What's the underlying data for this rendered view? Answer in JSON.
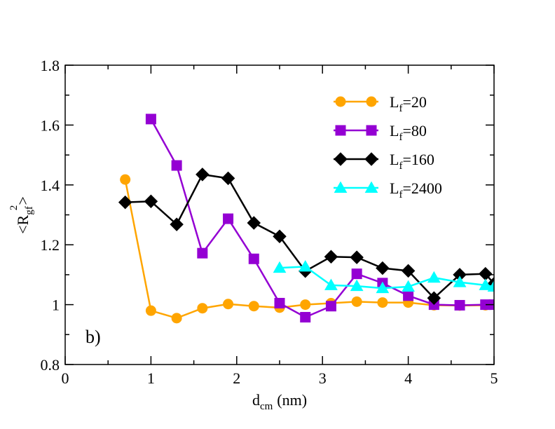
{
  "chart_data": {
    "type": "line",
    "title": "",
    "panel_label": "b)",
    "xlabel": {
      "main": "d",
      "sub": "cm",
      "unit": "(nm)"
    },
    "ylabel": {
      "open": "<R",
      "sub": "gf",
      "sup": "2",
      "close": ">"
    },
    "xlim": [
      0,
      5
    ],
    "ylim": [
      0.8,
      1.8
    ],
    "xticks": [
      0,
      1,
      2,
      3,
      4,
      5
    ],
    "xtick_labels": [
      "0",
      "1",
      "2",
      "3",
      "4",
      "5"
    ],
    "yticks": [
      0.8,
      1.0,
      1.2,
      1.4,
      1.6,
      1.8
    ],
    "ytick_labels": [
      "0.8",
      "1",
      "1.2",
      "1.4",
      "1.6",
      "1.8"
    ],
    "grid": false,
    "legend_position": "top-right",
    "series": [
      {
        "name": "L_f=20",
        "label_main": "L",
        "label_sub": "f",
        "label_rest": "=20",
        "color": "#FFA500",
        "marker": "circle",
        "x": [
          0.7,
          1.0,
          1.3,
          1.6,
          1.9,
          2.2,
          2.5,
          2.8,
          3.1,
          3.4,
          3.7,
          4.0,
          4.3,
          4.6,
          4.9
        ],
        "y": [
          1.418,
          0.98,
          0.955,
          0.988,
          1.002,
          0.995,
          0.99,
          1.0,
          1.005,
          1.01,
          1.007,
          1.007,
          0.998,
          0.997,
          0.998
        ]
      },
      {
        "name": "L_f=80",
        "label_main": "L",
        "label_sub": "f",
        "label_rest": "=80",
        "color": "#9400D3",
        "marker": "square",
        "x": [
          1.0,
          1.3,
          1.6,
          1.9,
          2.2,
          2.5,
          2.8,
          3.1,
          3.4,
          3.7,
          4.0,
          4.3,
          4.6,
          4.9,
          5.0
        ],
        "y": [
          1.62,
          1.465,
          1.172,
          1.287,
          1.153,
          1.005,
          0.958,
          0.995,
          1.103,
          1.072,
          1.03,
          1.0,
          0.998,
          1.0,
          1.0
        ]
      },
      {
        "name": "L_f=160",
        "label_main": "L",
        "label_sub": "f",
        "label_rest": "=160",
        "color": "#000000",
        "marker": "diamond",
        "x": [
          0.7,
          1.0,
          1.3,
          1.6,
          1.9,
          2.2,
          2.5,
          2.8,
          3.1,
          3.4,
          3.7,
          4.0,
          4.3,
          4.6,
          4.9,
          5.0
        ],
        "y": [
          1.342,
          1.345,
          1.268,
          1.435,
          1.422,
          1.273,
          1.228,
          1.112,
          1.16,
          1.158,
          1.122,
          1.113,
          1.022,
          1.1,
          1.103,
          1.07
        ]
      },
      {
        "name": "L_f=2400",
        "label_main": "L",
        "label_sub": "f",
        "label_rest": "=2400",
        "color": "#00FFFF",
        "marker": "triangle",
        "x": [
          2.5,
          2.8,
          3.1,
          3.4,
          3.7,
          4.0,
          4.3,
          4.6,
          4.9,
          5.0
        ],
        "y": [
          1.123,
          1.127,
          1.065,
          1.062,
          1.055,
          1.06,
          1.09,
          1.075,
          1.065,
          1.06
        ]
      }
    ]
  }
}
